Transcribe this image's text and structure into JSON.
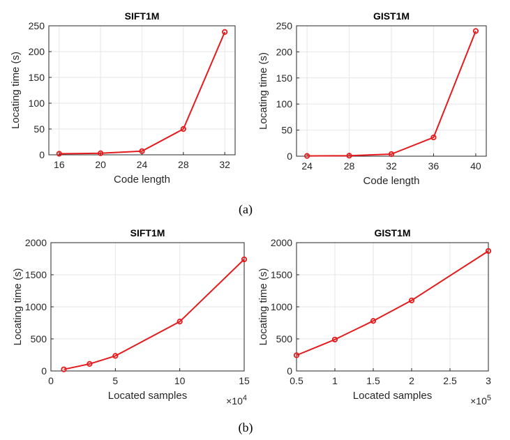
{
  "figure": {
    "caption_a": "(a)",
    "caption_b": "(b)"
  },
  "colors": {
    "series": "#e41a1c",
    "grid": "#e6e6e6",
    "axis": "#262626"
  },
  "chart_data": [
    {
      "type": "line",
      "title": "SIFT1M",
      "xlabel": "Code length",
      "ylabel": "Locating time (s)",
      "x": [
        16,
        20,
        24,
        28,
        32
      ],
      "y": [
        2,
        3,
        7,
        50,
        238
      ],
      "xlim": [
        15,
        33
      ],
      "ylim": [
        0,
        250
      ],
      "xticks": [
        16,
        20,
        24,
        28,
        32
      ],
      "xticklabels": [
        "16",
        "20",
        "24",
        "28",
        "32"
      ],
      "yticks": [
        0,
        50,
        100,
        150,
        200,
        250
      ],
      "yticklabels": [
        "0",
        "50",
        "100",
        "150",
        "200",
        "250"
      ],
      "grid": true,
      "marker": "circle"
    },
    {
      "type": "line",
      "title": "GIST1M",
      "xlabel": "Code length",
      "ylabel": "Locating time (s)",
      "x": [
        24,
        28,
        32,
        36,
        40
      ],
      "y": [
        0.5,
        1,
        4,
        36,
        240
      ],
      "xlim": [
        23,
        41
      ],
      "ylim": [
        0,
        250
      ],
      "xticks": [
        24,
        28,
        32,
        36,
        40
      ],
      "xticklabels": [
        "24",
        "28",
        "32",
        "36",
        "40"
      ],
      "yticks": [
        0,
        50,
        100,
        150,
        200,
        250
      ],
      "yticklabels": [
        "0",
        "50",
        "100",
        "150",
        "200",
        "250"
      ],
      "grid": true,
      "marker": "circle"
    },
    {
      "type": "line",
      "title": "SIFT1M",
      "xlabel": "Located samples",
      "ylabel": "Locating time (s)",
      "x": [
        1,
        3,
        5,
        10,
        15
      ],
      "y": [
        25,
        110,
        235,
        770,
        1740
      ],
      "xlim": [
        0,
        15
      ],
      "ylim": [
        0,
        2000
      ],
      "xticks": [
        0,
        5,
        10,
        15
      ],
      "xticklabels": [
        "0",
        "5",
        "10",
        "15"
      ],
      "yticks": [
        0,
        500,
        1000,
        1500,
        2000
      ],
      "yticklabels": [
        "0",
        "500",
        "1000",
        "1500",
        "2000"
      ],
      "exponent_base": "×10",
      "exponent_power": "4",
      "grid": true,
      "marker": "circle"
    },
    {
      "type": "line",
      "title": "GIST1M",
      "xlabel": "Located samples",
      "ylabel": "Locating time (s)",
      "x": [
        0.5,
        1,
        1.5,
        2,
        3
      ],
      "y": [
        245,
        490,
        780,
        1100,
        1870
      ],
      "xlim": [
        0.5,
        3
      ],
      "ylim": [
        0,
        2000
      ],
      "xticks": [
        0.5,
        1,
        1.5,
        2,
        2.5,
        3
      ],
      "xticklabels": [
        "0.5",
        "1",
        "1.5",
        "2",
        "2.5",
        "3"
      ],
      "yticks": [
        0,
        500,
        1000,
        1500,
        2000
      ],
      "yticklabels": [
        "0",
        "500",
        "1000",
        "1500",
        "2000"
      ],
      "exponent_base": "×10",
      "exponent_power": "5",
      "grid": true,
      "marker": "circle"
    }
  ]
}
